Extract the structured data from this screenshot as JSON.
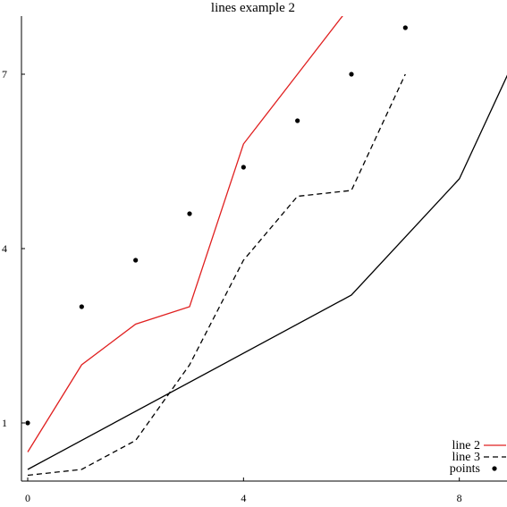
{
  "chart_data": {
    "type": "line",
    "title": "lines example 2",
    "xlabel": "",
    "ylabel": "",
    "xlim": [
      0,
      9
    ],
    "ylim": [
      0,
      8
    ],
    "x_ticks": [
      0,
      4,
      8
    ],
    "y_ticks": [
      1,
      4,
      7
    ],
    "grid": false,
    "legend_position": "bottom-right",
    "series": [
      {
        "key": "line1",
        "type": "line",
        "name": "",
        "color": "#000000",
        "dash": "solid",
        "x": [
          0,
          6,
          8,
          9
        ],
        "y": [
          0.2,
          3.2,
          5.2,
          7.2
        ]
      },
      {
        "key": "line2",
        "type": "line",
        "name": "line 2",
        "color": "#e02020",
        "dash": "solid",
        "x": [
          0,
          1,
          2,
          3,
          4,
          5,
          6
        ],
        "y": [
          0.5,
          2.0,
          2.7,
          3.0,
          5.8,
          7.0,
          8.2
        ]
      },
      {
        "key": "line3",
        "type": "line",
        "name": "line 3",
        "color": "#000000",
        "dash": "dashed",
        "x": [
          0,
          1,
          2,
          3,
          4,
          5,
          6,
          7
        ],
        "y": [
          0.1,
          0.2,
          0.7,
          2.0,
          3.8,
          4.9,
          5.0,
          7.0
        ]
      },
      {
        "key": "points",
        "type": "scatter",
        "name": "points",
        "color": "#000000",
        "x": [
          0,
          1,
          2,
          3,
          4,
          5,
          6,
          7
        ],
        "y": [
          1.0,
          3.0,
          3.8,
          4.6,
          5.4,
          6.2,
          7.0,
          7.8
        ]
      }
    ]
  }
}
